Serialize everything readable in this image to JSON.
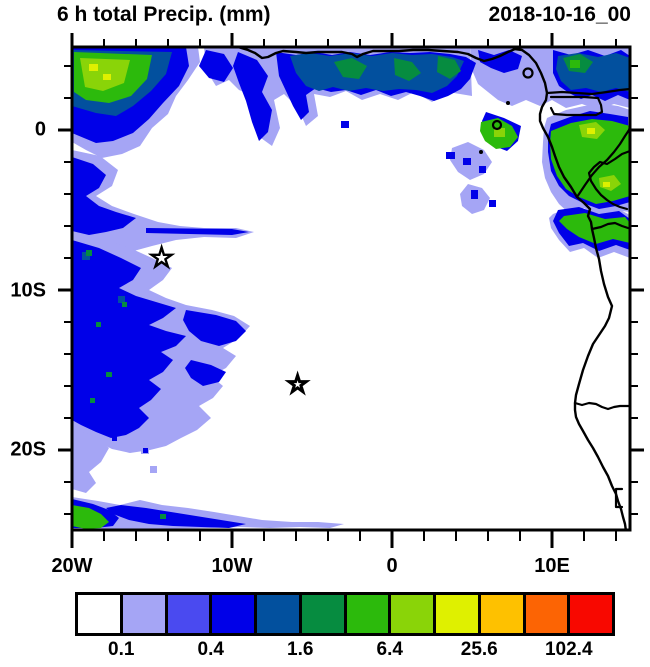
{
  "titles": {
    "left": "6 h total Precip. (mm)",
    "right": "2018-10-16_00"
  },
  "axes": {
    "y_labels": [
      "0",
      "10S",
      "20S"
    ],
    "x_labels": [
      "20W",
      "10W",
      "0",
      "10E"
    ]
  },
  "colorbar": {
    "labels": [
      "0.1",
      "0.4",
      "1.6",
      "6.4",
      "25.6",
      "102.4"
    ],
    "colors": [
      "#FFFFFF",
      "#A5A5F5",
      "#4A4AF0",
      "#0000E8",
      "#02509E",
      "#068C40",
      "#2CBA0C",
      "#8AD408",
      "#DFF000",
      "#FEC100",
      "#FC6404",
      "#F80800"
    ]
  },
  "chart_data": {
    "type": "heatmap",
    "title": "6 h total Precip. (mm)",
    "timestamp": "2018-10-16_00",
    "x_axis": {
      "tick_labels": [
        "20W",
        "10W",
        "0",
        "10E"
      ],
      "range_deg": [
        -20,
        14.9
      ],
      "minor_tick_interval_deg": 2
    },
    "y_axis": {
      "tick_labels": [
        "0",
        "10S",
        "20S"
      ],
      "range_deg": [
        -25,
        5.2
      ],
      "minor_tick_interval_deg": 2
    },
    "colorbar_tick_labels": [
      0.1,
      0.4,
      1.6,
      6.4,
      25.6,
      102.4
    ],
    "palette": [
      "#FFFFFF",
      "#A5A5F5",
      "#4A4AF0",
      "#0000E8",
      "#02509E",
      "#068C40",
      "#2CBA0C",
      "#8AD408",
      "#DFF000",
      "#FEC100",
      "#FC6404",
      "#F80800"
    ],
    "map_features": "West/Central African coastline from Gulf of Guinea to ~25S with country borders and Gulf of Guinea islands",
    "markers": [
      {
        "symbol": "star",
        "lon_deg": -14.4,
        "lat_deg": -8.0
      },
      {
        "symbol": "star",
        "lon_deg": -5.9,
        "lat_deg": -15.9
      }
    ],
    "precip_features": [
      {
        "region": "northwest corner (20W-16W, 1N-5N)",
        "intensity_band_mm": "6.4-51.2",
        "note": "green core with yellow-green/yellow spots, blue fringe"
      },
      {
        "region": "northern edge band (17W-3E, 2N-5N)",
        "intensity_band_mm": "1.6-6.4",
        "note": "dark-blue band with embedded dark green patches, hanging tails near 13W and 9W"
      },
      {
        "region": "Cameroon / Equatorial Guinea coast (4E-15E, 1N-5N)",
        "intensity_band_mm": "3.2-25.6",
        "note": "scattered blue and green patches"
      },
      {
        "region": "Gabon / Congo interior (8E-15E, 0-7S)",
        "intensity_band_mm": "6.4-51.2",
        "note": "large green area with yellow spots reaching right edge"
      },
      {
        "region": "western edge column (20W-15W, 3S-22S)",
        "intensity_band_mm": "0.1-1.6",
        "note": "patchy royal-blue cells with lavender fringe, occasional dark-green specks"
      },
      {
        "region": "southwest corner (20W-18W, 23S-25S)",
        "intensity_band_mm": "1.6-12.8",
        "note": "small green/blue patch with thin streak extending east along bottom edge"
      }
    ]
  }
}
